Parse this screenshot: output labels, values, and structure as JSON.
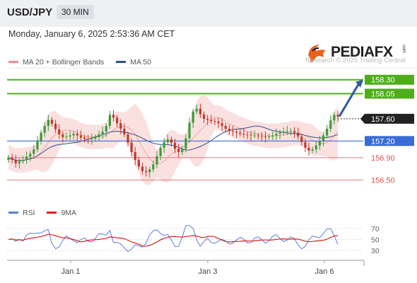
{
  "header": {
    "pair": "USD/JPY",
    "timeframe": "30 MIN"
  },
  "datetime": "Monday, January 6, 2025 2:53:36 AM CET",
  "logo": {
    "text": "PEDIAFX",
    "small": ".com"
  },
  "copyright": "Research © 2025 Trading Central",
  "legend": {
    "main": [
      {
        "label": "MA 20 + Bollinger Bands",
        "color": "#f08a8a"
      },
      {
        "label": "MA 50",
        "color": "#2c4f8f"
      }
    ],
    "rsi": [
      {
        "label": "RSI",
        "color": "#5a7fd6"
      },
      {
        "label": "9MA",
        "color": "#e02020"
      }
    ]
  },
  "colors": {
    "up": "#3a9b3a",
    "down": "#c0392b",
    "bands": "#f9d6d6",
    "support": "#e37a7a",
    "pivot": "#3b6bd6",
    "target": "#4caf1a"
  },
  "chart_data": {
    "type": "candlestick",
    "y_range": [
      156.2,
      158.5
    ],
    "x_ticks": [
      "Jan 1",
      "Jan 3",
      "Jan 6"
    ],
    "levels": [
      {
        "label": "158.30",
        "value": 158.3,
        "kind": "target"
      },
      {
        "label": "158.05",
        "value": 158.05,
        "kind": "target"
      },
      {
        "label": "157.60",
        "value": 157.6,
        "kind": "current"
      },
      {
        "label": "157.20",
        "value": 157.2,
        "kind": "pivot"
      },
      {
        "label": "156.90",
        "value": 156.9,
        "kind": "support"
      },
      {
        "label": "156.50",
        "value": 156.5,
        "kind": "support"
      }
    ],
    "closes": [
      156.9,
      156.86,
      156.8,
      156.84,
      156.86,
      156.92,
      156.97,
      157.05,
      157.2,
      157.35,
      157.47,
      157.58,
      157.51,
      157.41,
      157.32,
      157.27,
      157.28,
      157.3,
      157.33,
      157.3,
      157.26,
      157.24,
      157.23,
      157.24,
      157.27,
      157.32,
      157.37,
      157.47,
      157.67,
      157.62,
      157.52,
      157.42,
      157.32,
      157.17,
      157.0,
      156.86,
      156.74,
      156.66,
      156.64,
      156.69,
      156.78,
      156.93,
      157.08,
      157.18,
      157.23,
      157.17,
      157.06,
      157.0,
      157.06,
      157.25,
      157.53,
      157.73,
      157.78,
      157.68,
      157.6,
      157.58,
      157.56,
      157.55,
      157.52,
      157.47,
      157.42,
      157.38,
      157.37,
      157.35,
      157.33,
      157.32,
      157.31,
      157.3,
      157.3,
      157.29,
      157.28,
      157.27,
      157.28,
      157.3,
      157.33,
      157.35,
      157.37,
      157.38,
      157.38,
      157.35,
      157.28,
      157.18,
      157.08,
      157.03,
      157.05,
      157.12,
      157.2,
      157.3,
      157.42,
      157.57,
      157.67,
      157.64
    ],
    "rsi": {
      "ticks": [
        70,
        50,
        30
      ],
      "range": [
        20,
        80
      ]
    }
  }
}
